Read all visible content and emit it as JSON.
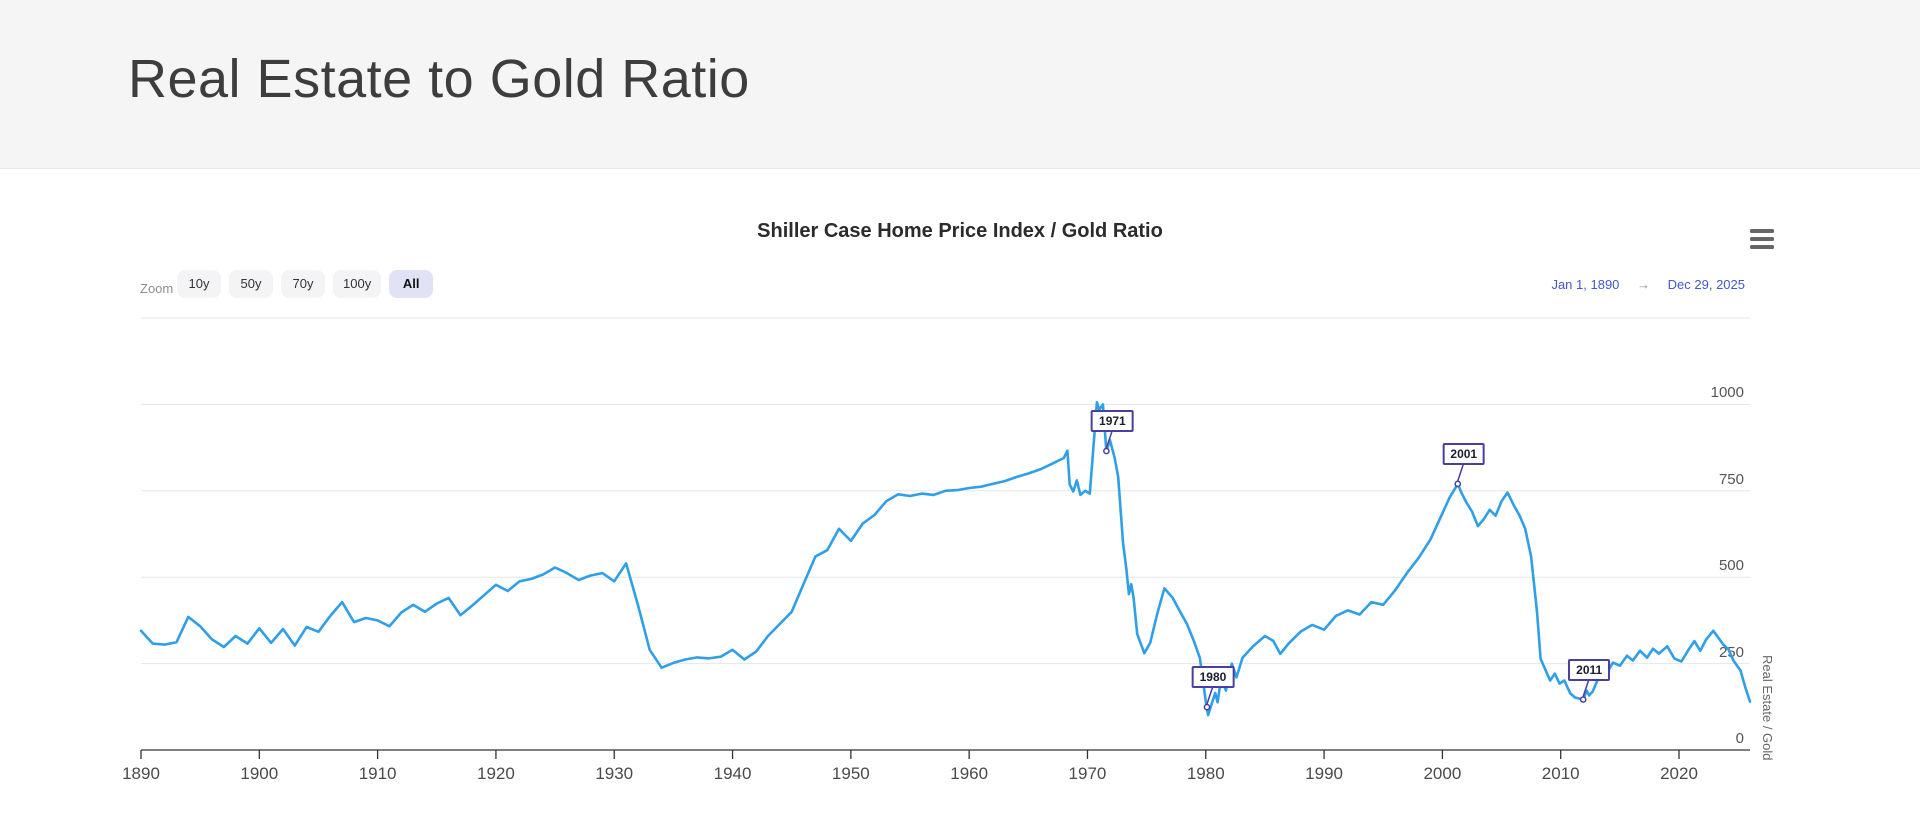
{
  "page": {
    "title": "Real Estate to Gold Ratio"
  },
  "chart": {
    "title": "Shiller Case Home Price Index / Gold Ratio",
    "menu_icon": "hamburger-menu-icon",
    "range_selector": {
      "zoom_label": "Zoom",
      "buttons": [
        {
          "label": "10y",
          "active": false
        },
        {
          "label": "50y",
          "active": false
        },
        {
          "label": "70y",
          "active": false
        },
        {
          "label": "100y",
          "active": false
        },
        {
          "label": "All",
          "active": true
        }
      ],
      "from_date": "Jan 1, 1890",
      "arrow": "→",
      "to_date": "Dec 29, 2025"
    }
  },
  "colors": {
    "series": "#2f9fe8",
    "annotation": "#4a3f9e",
    "active_button_bg": "#e2e2f6",
    "date_link": "#4357cf",
    "grid": "#e6e6e6",
    "axis": "#333333",
    "header_bg": "#f5f5f5"
  },
  "chart_data": {
    "type": "line",
    "title": "Shiller Case Home Price Index / Gold Ratio",
    "xlabel": "",
    "ylabel": "Real Estate / Gold",
    "legend": "off",
    "grid": "on",
    "xlim": [
      1890,
      2026
    ],
    "ylim": [
      0,
      1250
    ],
    "xticks": [
      1890,
      1900,
      1910,
      1920,
      1930,
      1940,
      1950,
      1960,
      1970,
      1980,
      1990,
      2000,
      2010,
      2020
    ],
    "yticks": [
      0,
      250,
      500,
      750,
      1000
    ],
    "grid_values": [
      250,
      500,
      750,
      1000,
      1250
    ],
    "annotations": [
      {
        "label": "1971",
        "x": 1971.6,
        "y": 865
      },
      {
        "label": "1980",
        "x": 1980.1,
        "y": 124
      },
      {
        "label": "2001",
        "x": 2001.3,
        "y": 770
      },
      {
        "label": "2011",
        "x": 2011.9,
        "y": 146
      }
    ],
    "series": [
      {
        "name": "Real Estate / Gold",
        "color": "#2f9fe8",
        "points": [
          [
            1890,
            345
          ],
          [
            1891,
            308
          ],
          [
            1892,
            305
          ],
          [
            1893,
            312
          ],
          [
            1894,
            385
          ],
          [
            1895,
            358
          ],
          [
            1896,
            320
          ],
          [
            1897,
            298
          ],
          [
            1898,
            330
          ],
          [
            1899,
            308
          ],
          [
            1900,
            352
          ],
          [
            1901,
            310
          ],
          [
            1902,
            350
          ],
          [
            1903,
            302
          ],
          [
            1904,
            356
          ],
          [
            1905,
            342
          ],
          [
            1906,
            388
          ],
          [
            1907,
            428
          ],
          [
            1908,
            370
          ],
          [
            1909,
            382
          ],
          [
            1910,
            375
          ],
          [
            1911,
            358
          ],
          [
            1912,
            398
          ],
          [
            1913,
            420
          ],
          [
            1914,
            400
          ],
          [
            1915,
            424
          ],
          [
            1916,
            440
          ],
          [
            1917,
            390
          ],
          [
            1918,
            418
          ],
          [
            1919,
            448
          ],
          [
            1920,
            478
          ],
          [
            1921,
            460
          ],
          [
            1922,
            488
          ],
          [
            1923,
            495
          ],
          [
            1924,
            508
          ],
          [
            1925,
            528
          ],
          [
            1926,
            512
          ],
          [
            1927,
            492
          ],
          [
            1928,
            505
          ],
          [
            1929,
            512
          ],
          [
            1930,
            488
          ],
          [
            1931,
            540
          ],
          [
            1932,
            420
          ],
          [
            1933,
            290
          ],
          [
            1934,
            238
          ],
          [
            1935,
            252
          ],
          [
            1936,
            262
          ],
          [
            1937,
            268
          ],
          [
            1938,
            265
          ],
          [
            1939,
            270
          ],
          [
            1940,
            290
          ],
          [
            1941,
            262
          ],
          [
            1942,
            285
          ],
          [
            1943,
            330
          ],
          [
            1944,
            365
          ],
          [
            1945,
            400
          ],
          [
            1946,
            480
          ],
          [
            1947,
            560
          ],
          [
            1948,
            578
          ],
          [
            1949,
            640
          ],
          [
            1950,
            605
          ],
          [
            1951,
            655
          ],
          [
            1952,
            680
          ],
          [
            1953,
            720
          ],
          [
            1954,
            740
          ],
          [
            1955,
            735
          ],
          [
            1956,
            742
          ],
          [
            1957,
            738
          ],
          [
            1958,
            750
          ],
          [
            1959,
            752
          ],
          [
            1960,
            758
          ],
          [
            1961,
            762
          ],
          [
            1962,
            770
          ],
          [
            1963,
            778
          ],
          [
            1964,
            790
          ],
          [
            1965,
            800
          ],
          [
            1966,
            812
          ],
          [
            1967,
            828
          ],
          [
            1968,
            845
          ],
          [
            1968.3,
            866
          ],
          [
            1968.5,
            768
          ],
          [
            1968.8,
            748
          ],
          [
            1969.1,
            780
          ],
          [
            1969.4,
            738
          ],
          [
            1969.8,
            750
          ],
          [
            1970.2,
            742
          ],
          [
            1970.8,
            1006
          ],
          [
            1971.0,
            985
          ],
          [
            1971.3,
            1000
          ],
          [
            1971.6,
            865
          ],
          [
            1971.9,
            897
          ],
          [
            1972.3,
            845
          ],
          [
            1972.6,
            790
          ],
          [
            1973.0,
            600
          ],
          [
            1973.3,
            520
          ],
          [
            1973.5,
            451
          ],
          [
            1973.7,
            480
          ],
          [
            1973.9,
            440
          ],
          [
            1974.2,
            336
          ],
          [
            1974.8,
            280
          ],
          [
            1975.3,
            310
          ],
          [
            1975.9,
            395
          ],
          [
            1976.5,
            468
          ],
          [
            1977.2,
            440
          ],
          [
            1977.8,
            402
          ],
          [
            1978.4,
            365
          ],
          [
            1979.0,
            315
          ],
          [
            1979.5,
            266
          ],
          [
            1980.0,
            140
          ],
          [
            1980.2,
            101
          ],
          [
            1980.8,
            165
          ],
          [
            1981.0,
            138
          ],
          [
            1981.3,
            210
          ],
          [
            1981.7,
            172
          ],
          [
            1982.2,
            250
          ],
          [
            1982.6,
            210
          ],
          [
            1983.1,
            267
          ],
          [
            1984,
            300
          ],
          [
            1985,
            330
          ],
          [
            1985.7,
            316
          ],
          [
            1986.3,
            278
          ],
          [
            1987,
            308
          ],
          [
            1988,
            342
          ],
          [
            1989,
            362
          ],
          [
            1990,
            348
          ],
          [
            1991,
            388
          ],
          [
            1992,
            404
          ],
          [
            1993,
            392
          ],
          [
            1994,
            428
          ],
          [
            1995,
            420
          ],
          [
            1996,
            462
          ],
          [
            1997,
            512
          ],
          [
            1998,
            556
          ],
          [
            1999,
            610
          ],
          [
            2000,
            685
          ],
          [
            2000.6,
            730
          ],
          [
            2001.3,
            770
          ],
          [
            2001.6,
            745
          ],
          [
            2002,
            718
          ],
          [
            2002.5,
            690
          ],
          [
            2003,
            648
          ],
          [
            2003.5,
            668
          ],
          [
            2004,
            695
          ],
          [
            2004.5,
            678
          ],
          [
            2005,
            720
          ],
          [
            2005.5,
            745
          ],
          [
            2006,
            710
          ],
          [
            2006.5,
            680
          ],
          [
            2007,
            640
          ],
          [
            2007.5,
            560
          ],
          [
            2008,
            400
          ],
          [
            2008.3,
            264
          ],
          [
            2009.1,
            201
          ],
          [
            2009.5,
            221
          ],
          [
            2009.9,
            192
          ],
          [
            2010.3,
            201
          ],
          [
            2010.8,
            164
          ],
          [
            2011.2,
            152
          ],
          [
            2011.9,
            146
          ],
          [
            2012.2,
            172
          ],
          [
            2012.4,
            158
          ],
          [
            2012.7,
            169
          ],
          [
            2013.1,
            201
          ],
          [
            2013.5,
            224
          ],
          [
            2013.8,
            216
          ],
          [
            2014.4,
            253
          ],
          [
            2015,
            244
          ],
          [
            2015.6,
            273
          ],
          [
            2016.1,
            259
          ],
          [
            2016.7,
            287
          ],
          [
            2017.3,
            267
          ],
          [
            2017.8,
            293
          ],
          [
            2018.3,
            279
          ],
          [
            2019,
            300
          ],
          [
            2019.6,
            265
          ],
          [
            2020.2,
            256
          ],
          [
            2020.8,
            290
          ],
          [
            2021.3,
            315
          ],
          [
            2021.8,
            287
          ],
          [
            2022.3,
            320
          ],
          [
            2022.9,
            345
          ],
          [
            2023.7,
            307
          ],
          [
            2024.2,
            290
          ],
          [
            2024.6,
            259
          ],
          [
            2025.2,
            230
          ],
          [
            2025.6,
            181
          ],
          [
            2026,
            140
          ]
        ]
      }
    ]
  }
}
